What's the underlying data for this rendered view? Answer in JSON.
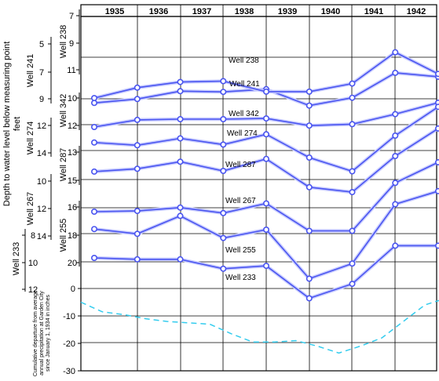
{
  "chart_data": {
    "type": "line",
    "years": [
      "1935",
      "1936",
      "1937",
      "1938",
      "1939",
      "1940",
      "1941",
      "1942"
    ],
    "ylabel": "Depth to water level below measuring point",
    "ylabel_unit": "feet",
    "wells": [
      {
        "name": "Well 238",
        "label": "Well 238",
        "axis_ticks": [
          "7",
          "9",
          "11"
        ],
        "values": [
          10.5,
          10.2,
          9.6,
          9.65,
          9.45,
          10.7,
          10.1,
          8.2,
          8.5
        ]
      },
      {
        "name": "Well 241",
        "label": "Well 241",
        "axis_ticks": [
          "5",
          "7",
          "9"
        ],
        "values": [
          9.15,
          8.5,
          8.15,
          8.1,
          8.75,
          8.75,
          8.25,
          6.3,
          7.65
        ]
      },
      {
        "name": "Well 342",
        "label": "Well 342",
        "axis_ticks": [
          "10",
          "12"
        ],
        "values": [
          12.0,
          11.5,
          11.45,
          11.45,
          11.4,
          11.9,
          11.8,
          11.1,
          10.3
        ]
      },
      {
        "name": "Well 274",
        "label": "Well 274",
        "axis_ticks": [
          "12",
          "14"
        ],
        "values": [
          12.5,
          12.7,
          12.2,
          12.65,
          11.9,
          13.6,
          14.6,
          12.0,
          9.9
        ]
      },
      {
        "name": "Well 287",
        "label": "Well 287",
        "axis_ticks": [
          "13",
          "15"
        ],
        "values": [
          14.65,
          14.45,
          13.95,
          14.6,
          13.75,
          15.75,
          16.1,
          13.55,
          11.6
        ]
      },
      {
        "name": "Well 267",
        "label": "Well 267",
        "axis_ticks": [
          "10",
          "12",
          "14"
        ],
        "values": [
          12.0,
          11.95,
          11.7,
          12.1,
          11.4,
          13.4,
          13.4,
          9.9,
          8.4
        ]
      },
      {
        "name": "Well 255",
        "label": "Well 255",
        "axis_ticks": [
          "16",
          "18",
          "20"
        ],
        "values": [
          17.85,
          18.2,
          16.9,
          18.5,
          17.9,
          21.45,
          20.35,
          16.05,
          15.1
        ]
      },
      {
        "name": "Well 233",
        "label": "Well 233",
        "axis_ticks": [
          "8",
          "10",
          "12"
        ],
        "values": [
          8.75,
          8.85,
          8.85,
          9.5,
          9.3,
          11.55,
          10.55,
          7.9,
          7.9
        ]
      }
    ],
    "precipitation": {
      "name": "Cumulative departure from average annual precipitation at Garden City since January 1, 1934 in inches",
      "label": "Cumulative departure from average annual precipitation at Garden City since January 1, 1934 in inches",
      "ticks": [
        "0",
        "-10",
        "-20",
        "-30"
      ],
      "ylim": [
        -30,
        0
      ],
      "x": [
        1934.0,
        1934.5,
        1935.0,
        1935.5,
        1936.0,
        1936.5,
        1937.0,
        1937.5,
        1938.0,
        1938.5,
        1939.0,
        1939.5,
        1940.0,
        1940.5,
        1941.0,
        1941.5,
        1942.0,
        1942.5
      ],
      "values": [
        -5,
        -8.5,
        -9.5,
        -11,
        -12,
        -12.5,
        -13,
        -16.5,
        -19.5,
        -19.5,
        -19,
        -21,
        -23.5,
        -21,
        -18,
        -12,
        -6,
        -3.5
      ]
    },
    "grid": true
  }
}
